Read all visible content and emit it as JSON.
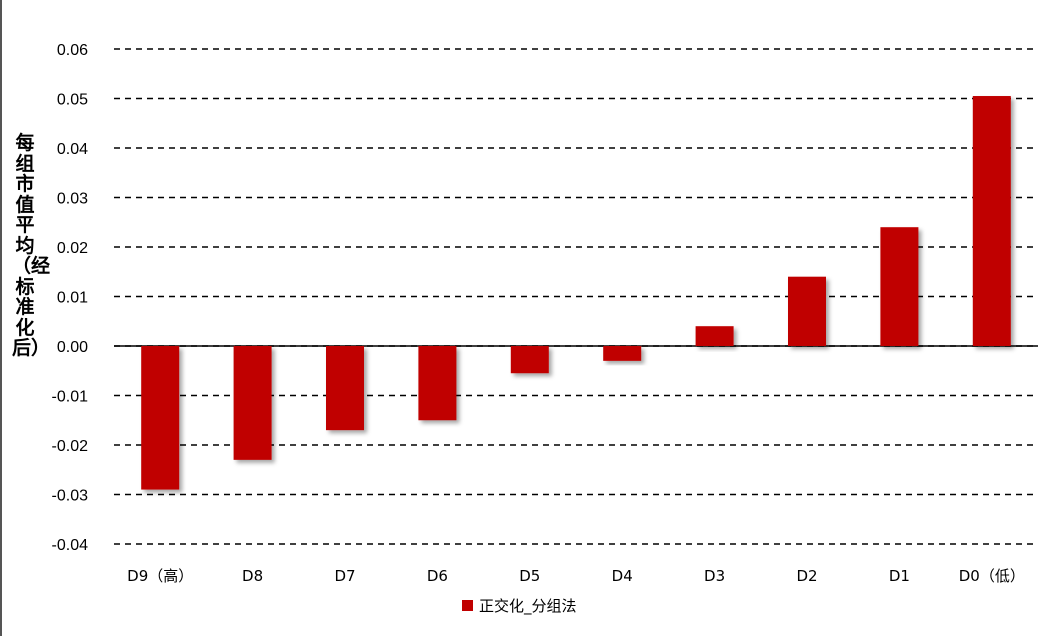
{
  "chart_data": {
    "type": "bar",
    "title": "",
    "xlabel": "",
    "ylabel": "每组市值平均（经标准化后）",
    "categories": [
      "D9（高）",
      "D8",
      "D7",
      "D6",
      "D5",
      "D4",
      "D3",
      "D2",
      "D1",
      "D0（低）"
    ],
    "series": [
      {
        "name": "正交化_分组法",
        "color": "#C00000",
        "values": [
          -0.029,
          -0.023,
          -0.017,
          -0.015,
          -0.0055,
          -0.003,
          0.004,
          0.014,
          0.024,
          0.0505
        ]
      }
    ],
    "ylim": [
      -0.04,
      0.06
    ],
    "yticks": [
      -0.04,
      -0.03,
      -0.02,
      -0.01,
      0.0,
      0.01,
      0.02,
      0.03,
      0.04,
      0.05,
      0.06
    ],
    "ytick_labels": [
      "-0.04",
      "-0.03",
      "-0.02",
      "-0.01",
      "0.00",
      "0.01",
      "0.02",
      "0.03",
      "0.04",
      "0.05",
      "0.06"
    ],
    "grid": "horizontal-dashed",
    "legend_position": "bottom"
  }
}
